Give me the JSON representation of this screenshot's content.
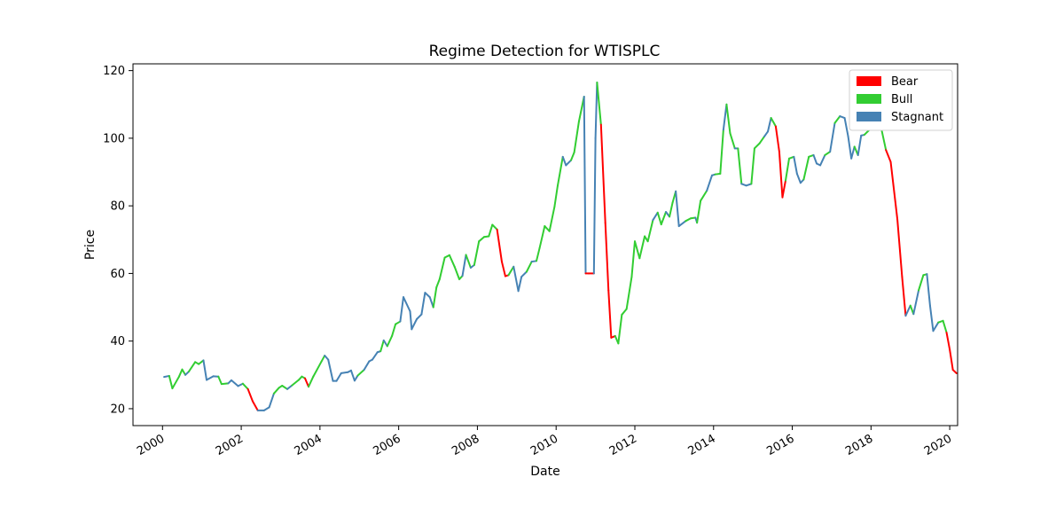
{
  "chart_data": {
    "type": "line",
    "title": "Regime Detection for WTISPLC",
    "xlabel": "Date",
    "ylabel": "Price",
    "xlim": [
      1999.25,
      2020.2
    ],
    "ylim": [
      15,
      122
    ],
    "x_ticks": [
      "2000",
      "2002",
      "2004",
      "2006",
      "2008",
      "2010",
      "2012",
      "2014",
      "2016",
      "2018",
      "2020"
    ],
    "y_ticks": [
      "20",
      "40",
      "60",
      "80",
      "100",
      "120"
    ],
    "grid": false,
    "legend_position": "top-right",
    "regime_colors": {
      "Bear": "#ff0000",
      "Bull": "#32cd32",
      "Stagnant": "#4682b4"
    },
    "series": [
      {
        "name": "Bear"
      },
      {
        "name": "Bull"
      },
      {
        "name": "Stagnant"
      }
    ],
    "data": [
      {
        "x": 2000.04,
        "y": 29.4,
        "regime": "Stagnant"
      },
      {
        "x": 2000.17,
        "y": 29.7,
        "regime": "Bull"
      },
      {
        "x": 2000.25,
        "y": 26.0,
        "regime": "Bull"
      },
      {
        "x": 2000.42,
        "y": 29.5,
        "regime": "Bull"
      },
      {
        "x": 2000.5,
        "y": 31.6,
        "regime": "Bull"
      },
      {
        "x": 2000.58,
        "y": 30.0,
        "regime": "Stagnant"
      },
      {
        "x": 2000.67,
        "y": 31.0,
        "regime": "Bull"
      },
      {
        "x": 2000.83,
        "y": 33.8,
        "regime": "Bull"
      },
      {
        "x": 2000.92,
        "y": 33.2,
        "regime": "Bull"
      },
      {
        "x": 2001.04,
        "y": 34.3,
        "regime": "Stagnant"
      },
      {
        "x": 2001.12,
        "y": 28.5,
        "regime": "Stagnant"
      },
      {
        "x": 2001.29,
        "y": 29.6,
        "regime": "Stagnant"
      },
      {
        "x": 2001.42,
        "y": 29.5,
        "regime": "Bull"
      },
      {
        "x": 2001.5,
        "y": 27.3,
        "regime": "Bull"
      },
      {
        "x": 2001.67,
        "y": 27.5,
        "regime": "Stagnant"
      },
      {
        "x": 2001.75,
        "y": 28.4,
        "regime": "Stagnant"
      },
      {
        "x": 2001.92,
        "y": 26.7,
        "regime": "Stagnant"
      },
      {
        "x": 2002.04,
        "y": 27.4,
        "regime": "Bull"
      },
      {
        "x": 2002.17,
        "y": 25.8,
        "regime": "Bear"
      },
      {
        "x": 2002.29,
        "y": 22.2,
        "regime": "Bear"
      },
      {
        "x": 2002.42,
        "y": 19.5,
        "regime": "Stagnant"
      },
      {
        "x": 2002.58,
        "y": 19.5,
        "regime": "Stagnant"
      },
      {
        "x": 2002.71,
        "y": 20.4,
        "regime": "Stagnant"
      },
      {
        "x": 2002.83,
        "y": 24.5,
        "regime": "Bull"
      },
      {
        "x": 2002.96,
        "y": 26.2,
        "regime": "Bull"
      },
      {
        "x": 2003.04,
        "y": 26.8,
        "regime": "Bull"
      },
      {
        "x": 2003.17,
        "y": 25.8,
        "regime": "Stagnant"
      },
      {
        "x": 2003.29,
        "y": 26.9,
        "regime": "Bull"
      },
      {
        "x": 2003.46,
        "y": 28.5,
        "regime": "Bull"
      },
      {
        "x": 2003.54,
        "y": 29.5,
        "regime": "Bull"
      },
      {
        "x": 2003.62,
        "y": 29.0,
        "regime": "Bear"
      },
      {
        "x": 2003.71,
        "y": 26.5,
        "regime": "Bull"
      },
      {
        "x": 2003.83,
        "y": 29.5,
        "regime": "Bull"
      },
      {
        "x": 2004.04,
        "y": 34.0,
        "regime": "Bull"
      },
      {
        "x": 2004.12,
        "y": 35.7,
        "regime": "Stagnant"
      },
      {
        "x": 2004.21,
        "y": 34.5,
        "regime": "Stagnant"
      },
      {
        "x": 2004.33,
        "y": 28.2,
        "regime": "Stagnant"
      },
      {
        "x": 2004.42,
        "y": 28.2,
        "regime": "Stagnant"
      },
      {
        "x": 2004.54,
        "y": 30.5,
        "regime": "Stagnant"
      },
      {
        "x": 2004.71,
        "y": 30.8,
        "regime": "Stagnant"
      },
      {
        "x": 2004.79,
        "y": 31.3,
        "regime": "Stagnant"
      },
      {
        "x": 2004.88,
        "y": 28.3,
        "regime": "Stagnant"
      },
      {
        "x": 2004.96,
        "y": 29.8,
        "regime": "Bull"
      },
      {
        "x": 2005.12,
        "y": 31.5,
        "regime": "Stagnant"
      },
      {
        "x": 2005.25,
        "y": 34.0,
        "regime": "Stagnant"
      },
      {
        "x": 2005.33,
        "y": 34.5,
        "regime": "Stagnant"
      },
      {
        "x": 2005.46,
        "y": 36.7,
        "regime": "Stagnant"
      },
      {
        "x": 2005.54,
        "y": 37.0,
        "regime": "Bull"
      },
      {
        "x": 2005.62,
        "y": 40.2,
        "regime": "Stagnant"
      },
      {
        "x": 2005.71,
        "y": 38.5,
        "regime": "Bull"
      },
      {
        "x": 2005.83,
        "y": 41.5,
        "regime": "Bull"
      },
      {
        "x": 2005.92,
        "y": 45.0,
        "regime": "Bull"
      },
      {
        "x": 2006.04,
        "y": 45.8,
        "regime": "Stagnant"
      },
      {
        "x": 2006.12,
        "y": 53.0,
        "regime": "Stagnant"
      },
      {
        "x": 2006.29,
        "y": 48.8,
        "regime": "Stagnant"
      },
      {
        "x": 2006.33,
        "y": 43.5,
        "regime": "Stagnant"
      },
      {
        "x": 2006.46,
        "y": 46.5,
        "regime": "Stagnant"
      },
      {
        "x": 2006.58,
        "y": 47.9,
        "regime": "Stagnant"
      },
      {
        "x": 2006.67,
        "y": 54.3,
        "regime": "Stagnant"
      },
      {
        "x": 2006.79,
        "y": 53.0,
        "regime": "Stagnant"
      },
      {
        "x": 2006.88,
        "y": 50.0,
        "regime": "Bull"
      },
      {
        "x": 2006.96,
        "y": 55.9,
        "regime": "Bull"
      },
      {
        "x": 2007.04,
        "y": 58.3,
        "regime": "Bull"
      },
      {
        "x": 2007.17,
        "y": 64.7,
        "regime": "Bull"
      },
      {
        "x": 2007.29,
        "y": 65.4,
        "regime": "Bull"
      },
      {
        "x": 2007.42,
        "y": 62.0,
        "regime": "Bull"
      },
      {
        "x": 2007.54,
        "y": 58.3,
        "regime": "Bull"
      },
      {
        "x": 2007.62,
        "y": 59.3,
        "regime": "Stagnant"
      },
      {
        "x": 2007.71,
        "y": 65.5,
        "regime": "Bull"
      },
      {
        "x": 2007.83,
        "y": 61.7,
        "regime": "Stagnant"
      },
      {
        "x": 2007.92,
        "y": 62.5,
        "regime": "Bull"
      },
      {
        "x": 2008.04,
        "y": 69.5,
        "regime": "Bull"
      },
      {
        "x": 2008.17,
        "y": 70.8,
        "regime": "Bull"
      },
      {
        "x": 2008.29,
        "y": 71.0,
        "regime": "Bull"
      },
      {
        "x": 2008.38,
        "y": 74.4,
        "regime": "Bull"
      },
      {
        "x": 2008.5,
        "y": 73.0,
        "regime": "Bear"
      },
      {
        "x": 2008.62,
        "y": 63.5,
        "regime": "Bear"
      },
      {
        "x": 2008.71,
        "y": 59.2,
        "regime": "Bear"
      },
      {
        "x": 2008.79,
        "y": 59.5,
        "regime": "Bull"
      },
      {
        "x": 2008.92,
        "y": 62.0,
        "regime": "Stagnant"
      },
      {
        "x": 2009.04,
        "y": 54.8,
        "regime": "Stagnant"
      },
      {
        "x": 2009.12,
        "y": 59.0,
        "regime": "Stagnant"
      },
      {
        "x": 2009.25,
        "y": 60.5,
        "regime": "Bull"
      },
      {
        "x": 2009.38,
        "y": 63.5,
        "regime": "Stagnant"
      },
      {
        "x": 2009.5,
        "y": 63.7,
        "regime": "Bull"
      },
      {
        "x": 2009.58,
        "y": 67.5,
        "regime": "Bull"
      },
      {
        "x": 2009.71,
        "y": 74.0,
        "regime": "Bull"
      },
      {
        "x": 2009.83,
        "y": 72.5,
        "regime": "Bull"
      },
      {
        "x": 2009.96,
        "y": 79.8,
        "regime": "Bull"
      },
      {
        "x": 2010.04,
        "y": 86.0,
        "regime": "Bull"
      },
      {
        "x": 2010.17,
        "y": 94.5,
        "regime": "Stagnant"
      },
      {
        "x": 2010.25,
        "y": 92.0,
        "regime": "Stagnant"
      },
      {
        "x": 2010.38,
        "y": 93.5,
        "regime": "Bull"
      },
      {
        "x": 2010.46,
        "y": 95.8,
        "regime": "Bull"
      },
      {
        "x": 2010.58,
        "y": 105.0,
        "regime": "Bull"
      },
      {
        "x": 2010.71,
        "y": 112.3,
        "regime": "Stagnant"
      },
      {
        "x": 2010.75,
        "y": 60.0,
        "regime": "Bear"
      },
      {
        "x": 2010.83,
        "y": 60.0,
        "regime": "Bear"
      },
      {
        "x": 2010.96,
        "y": 60.0,
        "regime": "Stagnant"
      },
      {
        "x": 2011.0,
        "y": 100.0,
        "regime": "Stagnant"
      },
      {
        "x": 2011.04,
        "y": 116.5,
        "regime": "Bull"
      },
      {
        "x": 2011.14,
        "y": 104.0,
        "regime": "Bear"
      },
      {
        "x": 2011.25,
        "y": 75.0,
        "regime": "Bear"
      },
      {
        "x": 2011.33,
        "y": 55.0,
        "regime": "Bear"
      },
      {
        "x": 2011.4,
        "y": 41.0,
        "regime": "Bear"
      },
      {
        "x": 2011.5,
        "y": 41.5,
        "regime": "Bull"
      },
      {
        "x": 2011.58,
        "y": 39.3,
        "regime": "Bull"
      },
      {
        "x": 2011.67,
        "y": 47.8,
        "regime": "Bull"
      },
      {
        "x": 2011.79,
        "y": 49.5,
        "regime": "Bull"
      },
      {
        "x": 2011.92,
        "y": 59.0,
        "regime": "Bull"
      },
      {
        "x": 2012.0,
        "y": 69.5,
        "regime": "Bull"
      },
      {
        "x": 2012.12,
        "y": 64.5,
        "regime": "Bull"
      },
      {
        "x": 2012.25,
        "y": 71.0,
        "regime": "Bull"
      },
      {
        "x": 2012.33,
        "y": 69.5,
        "regime": "Bull"
      },
      {
        "x": 2012.46,
        "y": 75.8,
        "regime": "Stagnant"
      },
      {
        "x": 2012.58,
        "y": 78.0,
        "regime": "Bull"
      },
      {
        "x": 2012.67,
        "y": 74.5,
        "regime": "Bull"
      },
      {
        "x": 2012.79,
        "y": 78.2,
        "regime": "Stagnant"
      },
      {
        "x": 2012.88,
        "y": 76.8,
        "regime": "Bull"
      },
      {
        "x": 2012.96,
        "y": 81.0,
        "regime": "Bull"
      },
      {
        "x": 2013.04,
        "y": 84.3,
        "regime": "Stagnant"
      },
      {
        "x": 2013.12,
        "y": 74.0,
        "regime": "Stagnant"
      },
      {
        "x": 2013.29,
        "y": 75.5,
        "regime": "Bull"
      },
      {
        "x": 2013.42,
        "y": 76.3,
        "regime": "Bull"
      },
      {
        "x": 2013.54,
        "y": 76.5,
        "regime": "Stagnant"
      },
      {
        "x": 2013.58,
        "y": 75.0,
        "regime": "Bull"
      },
      {
        "x": 2013.67,
        "y": 81.5,
        "regime": "Bull"
      },
      {
        "x": 2013.83,
        "y": 84.5,
        "regime": "Stagnant"
      },
      {
        "x": 2013.96,
        "y": 89.0,
        "regime": "Stagnant"
      },
      {
        "x": 2014.04,
        "y": 89.3,
        "regime": "Bull"
      },
      {
        "x": 2014.17,
        "y": 89.5,
        "regime": "Bull"
      },
      {
        "x": 2014.25,
        "y": 102.5,
        "regime": "Stagnant"
      },
      {
        "x": 2014.33,
        "y": 110.0,
        "regime": "Bull"
      },
      {
        "x": 2014.42,
        "y": 101.5,
        "regime": "Bull"
      },
      {
        "x": 2014.54,
        "y": 97.0,
        "regime": "Stagnant"
      },
      {
        "x": 2014.62,
        "y": 97.0,
        "regime": "Bull"
      },
      {
        "x": 2014.71,
        "y": 86.5,
        "regime": "Stagnant"
      },
      {
        "x": 2014.83,
        "y": 86.0,
        "regime": "Stagnant"
      },
      {
        "x": 2014.96,
        "y": 86.5,
        "regime": "Bull"
      },
      {
        "x": 2015.04,
        "y": 97.0,
        "regime": "Bull"
      },
      {
        "x": 2015.17,
        "y": 98.5,
        "regime": "Bull"
      },
      {
        "x": 2015.29,
        "y": 100.5,
        "regime": "Stagnant"
      },
      {
        "x": 2015.38,
        "y": 102.0,
        "regime": "Stagnant"
      },
      {
        "x": 2015.46,
        "y": 106.0,
        "regime": "Bull"
      },
      {
        "x": 2015.58,
        "y": 103.5,
        "regime": "Bear"
      },
      {
        "x": 2015.67,
        "y": 96.0,
        "regime": "Bear"
      },
      {
        "x": 2015.75,
        "y": 82.5,
        "regime": "Bear"
      },
      {
        "x": 2015.83,
        "y": 87.5,
        "regime": "Bull"
      },
      {
        "x": 2015.92,
        "y": 94.0,
        "regime": "Bull"
      },
      {
        "x": 2016.04,
        "y": 94.5,
        "regime": "Stagnant"
      },
      {
        "x": 2016.12,
        "y": 89.5,
        "regime": "Stagnant"
      },
      {
        "x": 2016.21,
        "y": 86.8,
        "regime": "Stagnant"
      },
      {
        "x": 2016.29,
        "y": 87.8,
        "regime": "Bull"
      },
      {
        "x": 2016.42,
        "y": 94.5,
        "regime": "Bull"
      },
      {
        "x": 2016.54,
        "y": 95.0,
        "regime": "Stagnant"
      },
      {
        "x": 2016.62,
        "y": 92.5,
        "regime": "Stagnant"
      },
      {
        "x": 2016.71,
        "y": 92.0,
        "regime": "Stagnant"
      },
      {
        "x": 2016.83,
        "y": 95.0,
        "regime": "Bull"
      },
      {
        "x": 2016.96,
        "y": 96.0,
        "regime": "Stagnant"
      },
      {
        "x": 2017.08,
        "y": 104.5,
        "regime": "Bull"
      },
      {
        "x": 2017.21,
        "y": 106.5,
        "regime": "Stagnant"
      },
      {
        "x": 2017.33,
        "y": 106.0,
        "regime": "Stagnant"
      },
      {
        "x": 2017.42,
        "y": 100.5,
        "regime": "Stagnant"
      },
      {
        "x": 2017.5,
        "y": 94.0,
        "regime": "Stagnant"
      },
      {
        "x": 2017.58,
        "y": 97.5,
        "regime": "Bull"
      },
      {
        "x": 2017.67,
        "y": 95.0,
        "regime": "Stagnant"
      },
      {
        "x": 2017.75,
        "y": 100.8,
        "regime": "Stagnant"
      },
      {
        "x": 2017.83,
        "y": 101.0,
        "regime": "Bull"
      },
      {
        "x": 2017.96,
        "y": 102.5,
        "regime": "Stagnant"
      },
      {
        "x": 2018.04,
        "y": 102.5,
        "regime": "Stagnant"
      },
      {
        "x": 2018.12,
        "y": 105.7,
        "regime": "Stagnant"
      },
      {
        "x": 2018.25,
        "y": 103.5,
        "regime": "Bull"
      },
      {
        "x": 2018.38,
        "y": 96.5,
        "regime": "Bear"
      },
      {
        "x": 2018.5,
        "y": 93.0,
        "regime": "Bear"
      },
      {
        "x": 2018.67,
        "y": 76.0,
        "regime": "Bear"
      },
      {
        "x": 2018.79,
        "y": 59.0,
        "regime": "Bear"
      },
      {
        "x": 2018.88,
        "y": 47.5,
        "regime": "Stagnant"
      },
      {
        "x": 2019.0,
        "y": 50.5,
        "regime": "Bull"
      },
      {
        "x": 2019.08,
        "y": 48.0,
        "regime": "Stagnant"
      },
      {
        "x": 2019.21,
        "y": 55.0,
        "regime": "Bull"
      },
      {
        "x": 2019.33,
        "y": 59.5,
        "regime": "Bull"
      },
      {
        "x": 2019.42,
        "y": 59.8,
        "regime": "Stagnant"
      },
      {
        "x": 2019.5,
        "y": 50.5,
        "regime": "Stagnant"
      },
      {
        "x": 2019.58,
        "y": 43.0,
        "regime": "Stagnant"
      },
      {
        "x": 2019.71,
        "y": 45.5,
        "regime": "Bull"
      },
      {
        "x": 2019.83,
        "y": 46.0,
        "regime": "Bull"
      },
      {
        "x": 2019.92,
        "y": 42.5,
        "regime": "Bear"
      },
      {
        "x": 2020.0,
        "y": 37.5,
        "regime": "Bear"
      },
      {
        "x": 2020.08,
        "y": 31.5,
        "regime": "Bear"
      },
      {
        "x": 2020.17,
        "y": 30.5,
        "regime": "Bear"
      }
    ]
  }
}
